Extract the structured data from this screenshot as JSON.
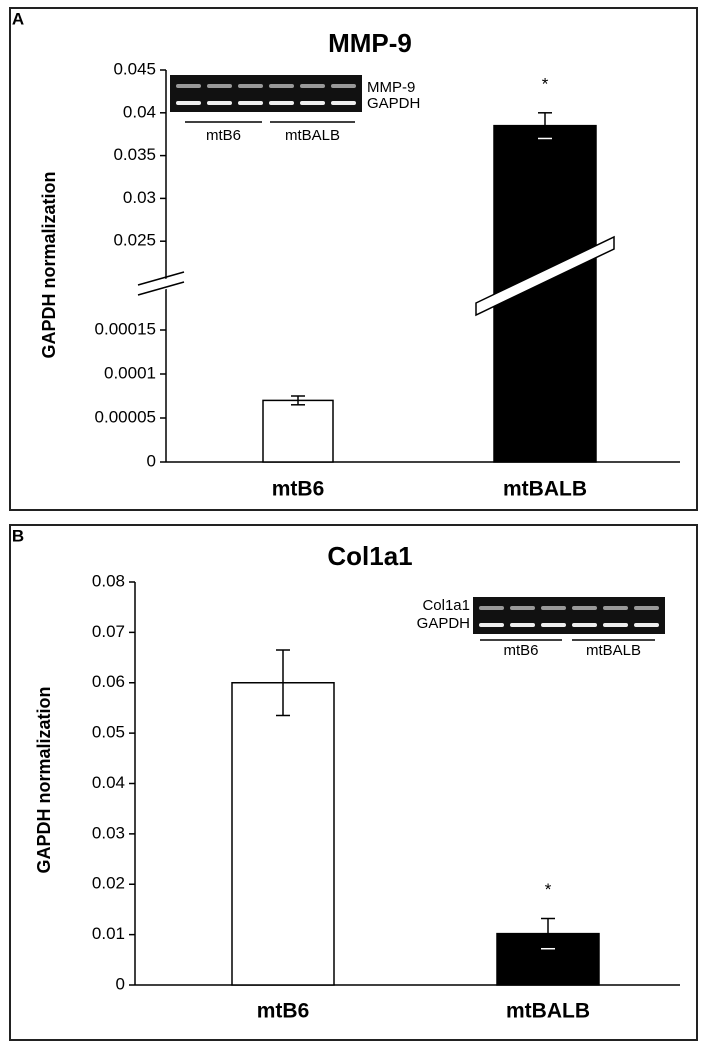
{
  "chart_data": [
    {
      "type": "bar",
      "panel": "A",
      "title": "MMP-9",
      "y_label": "GAPDH normalization",
      "categories": [
        "mtB6",
        "mtBALB"
      ],
      "values": [
        7e-05,
        0.0385
      ],
      "errors": [
        5e-06,
        0.0015
      ],
      "colors": [
        "#ffffff",
        "#000000"
      ],
      "ylim": [
        0,
        0.045
      ],
      "ybreak": [
        0.0002,
        0.02
      ],
      "yticks": [
        0,
        5e-05,
        0.0001,
        0.00015,
        0.025,
        0.03,
        0.035,
        0.04,
        0.045
      ],
      "annotations": [
        {
          "text": "*",
          "category": 1
        }
      ],
      "inset": {
        "bands": [
          "MMP-9",
          "GAPDH"
        ],
        "groups": [
          "mtB6",
          "mtBALB"
        ]
      }
    },
    {
      "type": "bar",
      "panel": "B",
      "title": "Col1a1",
      "y_label": "GAPDH normalization",
      "categories": [
        "mtB6",
        "mtBALB"
      ],
      "values": [
        0.06,
        0.0102
      ],
      "errors": [
        0.0065,
        0.003
      ],
      "colors": [
        "#ffffff",
        "#000000"
      ],
      "ylim": [
        0,
        0.08
      ],
      "yticks": [
        0,
        0.01,
        0.02,
        0.03,
        0.04,
        0.05,
        0.06,
        0.07,
        0.08
      ],
      "annotations": [
        {
          "text": "*",
          "category": 1
        }
      ],
      "inset": {
        "bands": [
          "Col1a1",
          "GAPDH"
        ],
        "groups": [
          "mtB6",
          "mtBALB"
        ]
      }
    }
  ]
}
